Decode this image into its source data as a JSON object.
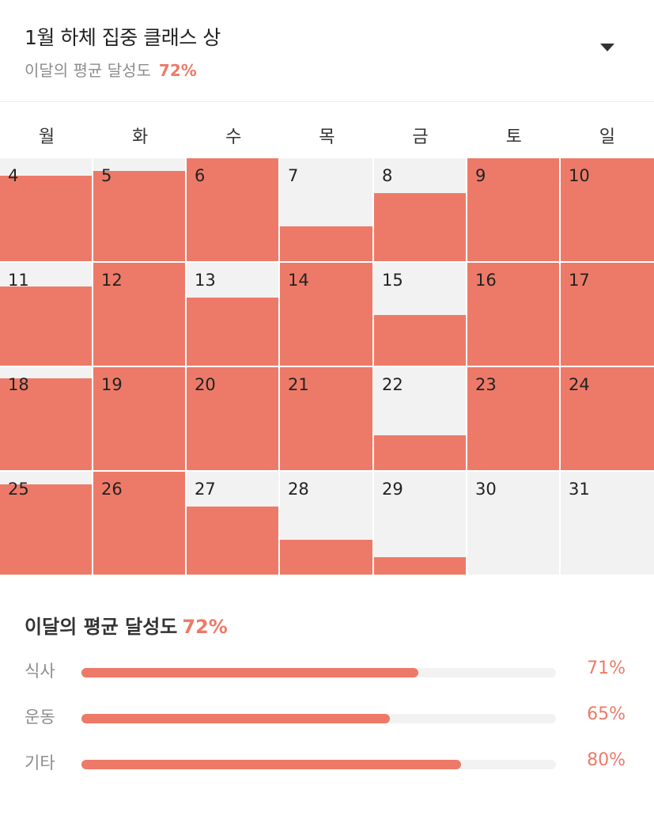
{
  "header": {
    "title": "1월 하체 집중 클래스 상",
    "subtitle_label": "이달의 평균 달성도",
    "subtitle_value": "72%"
  },
  "weekdays": [
    "월",
    "화",
    "수",
    "목",
    "금",
    "토",
    "일"
  ],
  "calendar": {
    "weeks": [
      [
        {
          "day": "4",
          "achievement": 0.83
        },
        {
          "day": "5",
          "achievement": 0.88
        },
        {
          "day": "6",
          "achievement": 1.0
        },
        {
          "day": "7",
          "achievement": 0.34
        },
        {
          "day": "8",
          "achievement": 0.66
        },
        {
          "day": "9",
          "achievement": 1.0
        },
        {
          "day": "10",
          "achievement": 1.0
        }
      ],
      [
        {
          "day": "11",
          "achievement": 0.77
        },
        {
          "day": "12",
          "achievement": 1.0
        },
        {
          "day": "13",
          "achievement": 0.66
        },
        {
          "day": "14",
          "achievement": 1.0
        },
        {
          "day": "15",
          "achievement": 0.49
        },
        {
          "day": "16",
          "achievement": 1.0
        },
        {
          "day": "17",
          "achievement": 1.0
        }
      ],
      [
        {
          "day": "18",
          "achievement": 0.89
        },
        {
          "day": "19",
          "achievement": 1.0
        },
        {
          "day": "20",
          "achievement": 1.0
        },
        {
          "day": "21",
          "achievement": 1.0
        },
        {
          "day": "22",
          "achievement": 0.34
        },
        {
          "day": "23",
          "achievement": 1.0
        },
        {
          "day": "24",
          "achievement": 1.0
        }
      ],
      [
        {
          "day": "25",
          "achievement": 0.88
        },
        {
          "day": "26",
          "achievement": 1.0
        },
        {
          "day": "27",
          "achievement": 0.66
        },
        {
          "day": "28",
          "achievement": 0.34
        },
        {
          "day": "29",
          "achievement": 0.17
        },
        {
          "day": "30",
          "achievement": 0
        },
        {
          "day": "31",
          "achievement": 0
        }
      ]
    ]
  },
  "summary": {
    "title_label": "이달의 평균 달성도",
    "title_value": "72%",
    "rows": [
      {
        "label": "식사",
        "value": "71%",
        "fraction": 0.71
      },
      {
        "label": "운동",
        "value": "65%",
        "fraction": 0.65
      },
      {
        "label": "기타",
        "value": "80%",
        "fraction": 0.8
      }
    ]
  },
  "colors": {
    "accent": "#ed7a68",
    "empty": "#f2f2f2",
    "muted": "#8d8d8d"
  },
  "icons": {
    "dropdown": "triangle-down-icon"
  }
}
